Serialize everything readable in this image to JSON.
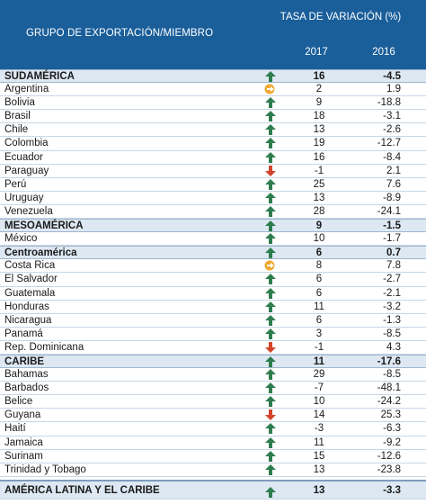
{
  "header": {
    "group_title": "GRUPO DE EXPORTACIÓN/MIEMBRO",
    "rate_title": "TASA DE VARIACIÓN (%)",
    "col_2017": "2017",
    "col_2016": "2016"
  },
  "colors": {
    "header_bg": "#1a5e9a",
    "group_bg": "#dde8f3",
    "up_icon": "#2e7d4f",
    "flat_icon": "#f0a830",
    "down_icon": "#d2452a"
  },
  "rows": [
    {
      "type": "group",
      "name": "SUDAMÉRICA",
      "trend": "up",
      "v2017": "16",
      "v2016": "-4.5"
    },
    {
      "type": "item",
      "name": "Argentina",
      "trend": "flat",
      "v2017": "2",
      "v2016": "1.9"
    },
    {
      "type": "item",
      "name": "Bolivia",
      "trend": "up",
      "v2017": "9",
      "v2016": "-18.8"
    },
    {
      "type": "item",
      "name": "Brasil",
      "trend": "up",
      "v2017": "18",
      "v2016": "-3.1"
    },
    {
      "type": "item",
      "name": "Chile",
      "trend": "up",
      "v2017": "13",
      "v2016": "-2.6"
    },
    {
      "type": "item",
      "name": "Colombia",
      "trend": "up",
      "v2017": "19",
      "v2016": "-12.7"
    },
    {
      "type": "item",
      "name": "Ecuador",
      "trend": "up",
      "v2017": "16",
      "v2016": "-8.4"
    },
    {
      "type": "item",
      "name": "Paraguay",
      "trend": "down",
      "v2017": "-1",
      "v2016": "2.1"
    },
    {
      "type": "item",
      "name": "Perú",
      "trend": "up",
      "v2017": "25",
      "v2016": "7.6"
    },
    {
      "type": "item",
      "name": "Uruguay",
      "trend": "up",
      "v2017": "13",
      "v2016": "-8.9"
    },
    {
      "type": "item",
      "name": "Venezuela",
      "trend": "up",
      "v2017": "28",
      "v2016": "-24.1"
    },
    {
      "type": "group",
      "name": "MESOAMÉRICA",
      "trend": "up",
      "v2017": "9",
      "v2016": "-1.5"
    },
    {
      "type": "item",
      "name": "México",
      "trend": "up",
      "v2017": "10",
      "v2016": "-1.7"
    },
    {
      "type": "group",
      "name": "Centroamérica",
      "trend": "up",
      "v2017": "6",
      "v2016": "0.7"
    },
    {
      "type": "item",
      "name": "Costa Rica",
      "trend": "flat",
      "v2017": "8",
      "v2016": "7.8"
    },
    {
      "type": "item",
      "name": "El Salvador",
      "trend": "up",
      "v2017": "6",
      "v2016": "-2.7"
    },
    {
      "type": "item",
      "name": "Guatemala",
      "trend": "up",
      "v2017": "6",
      "v2016": "-2.1"
    },
    {
      "type": "item",
      "name": "Honduras",
      "trend": "up",
      "v2017": "11",
      "v2016": "-3.2"
    },
    {
      "type": "item",
      "name": "Nicaragua",
      "trend": "up",
      "v2017": "6",
      "v2016": "-1.3"
    },
    {
      "type": "item",
      "name": "Panamá",
      "trend": "up",
      "v2017": "3",
      "v2016": "-8.5"
    },
    {
      "type": "item",
      "name": "Rep. Dominicana",
      "trend": "down",
      "v2017": "-1",
      "v2016": "4.3"
    },
    {
      "type": "group",
      "name": "CARIBE",
      "trend": "up",
      "v2017": "11",
      "v2016": "-17.6"
    },
    {
      "type": "item",
      "name": "Bahamas",
      "trend": "up",
      "v2017": "29",
      "v2016": "-8.5"
    },
    {
      "type": "item",
      "name": "Barbados",
      "trend": "up",
      "v2017": "-7",
      "v2016": "-48.1"
    },
    {
      "type": "item",
      "name": "Belice",
      "trend": "up",
      "v2017": "10",
      "v2016": "-24.2"
    },
    {
      "type": "item",
      "name": "Guyana",
      "trend": "down",
      "v2017": "14",
      "v2016": "25.3"
    },
    {
      "type": "item",
      "name": "Haití",
      "trend": "up",
      "v2017": "-3",
      "v2016": "-6.3"
    },
    {
      "type": "item",
      "name": "Jamaica",
      "trend": "up",
      "v2017": "11",
      "v2016": "-9.2"
    },
    {
      "type": "item",
      "name": "Surinam",
      "trend": "up",
      "v2017": "15",
      "v2016": "-12.6"
    },
    {
      "type": "item",
      "name": "Trinidad y Tobago",
      "trend": "up",
      "v2017": "13",
      "v2016": "-23.8"
    },
    {
      "type": "total",
      "name": "AMÉRICA LATINA Y EL CARIBE",
      "trend": "up",
      "v2017": "13",
      "v2016": "-3.3"
    }
  ]
}
